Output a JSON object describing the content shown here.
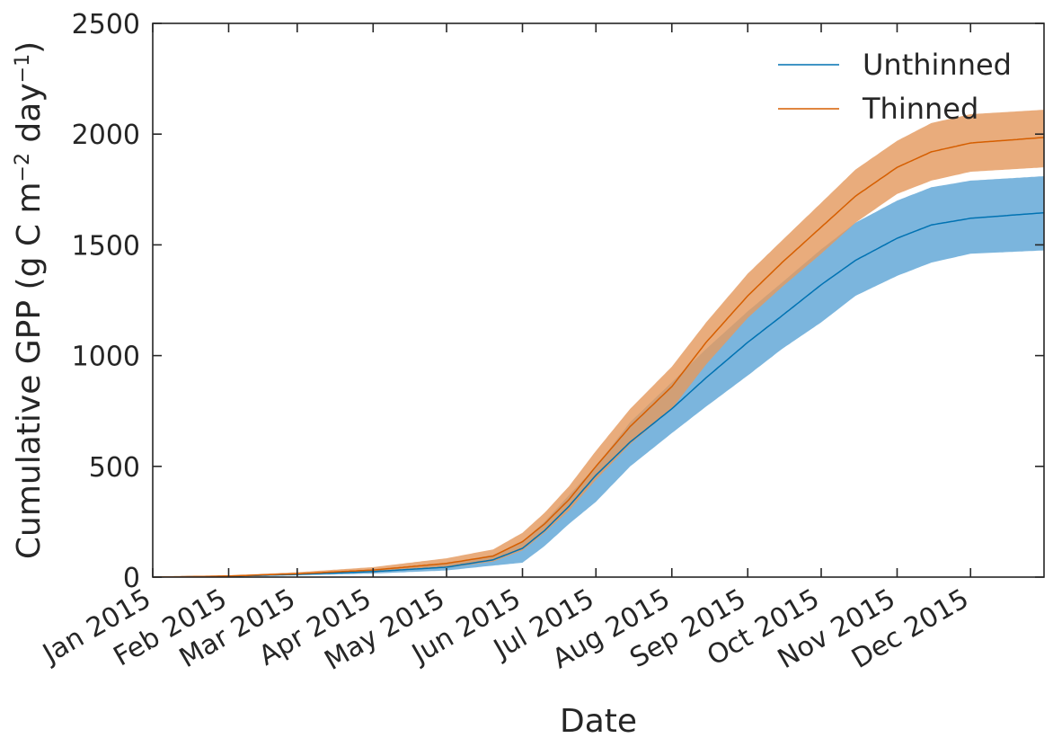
{
  "chart_data": {
    "type": "area",
    "xlabel": "Date",
    "ylabel_parts": [
      "Cumulative GPP (g C m",
      "−2",
      " day",
      "−1",
      ")"
    ],
    "xlim": [
      "2015-01-01",
      "2015-12-31"
    ],
    "ylim": [
      0,
      2500
    ],
    "y_ticks": [
      0,
      500,
      1000,
      1500,
      2000,
      2500
    ],
    "x_ticks": [
      {
        "date": "2015-01-01",
        "label": "Jan 2015"
      },
      {
        "date": "2015-02-01",
        "label": "Feb 2015"
      },
      {
        "date": "2015-03-01",
        "label": "Mar 2015"
      },
      {
        "date": "2015-04-01",
        "label": "Apr 2015"
      },
      {
        "date": "2015-05-01",
        "label": "May 2015"
      },
      {
        "date": "2015-06-01",
        "label": "Jun 2015"
      },
      {
        "date": "2015-07-01",
        "label": "Jul 2015"
      },
      {
        "date": "2015-08-01",
        "label": "Aug 2015"
      },
      {
        "date": "2015-09-01",
        "label": "Sep 2015"
      },
      {
        "date": "2015-10-01",
        "label": "Oct 2015"
      },
      {
        "date": "2015-11-01",
        "label": "Nov 2015"
      },
      {
        "date": "2015-12-01",
        "label": "Dec 2015"
      }
    ],
    "grid": false,
    "legend_position": "top-right",
    "series": [
      {
        "name": "Unthinned",
        "color": "#0072b2",
        "band_color": "#56a0d3",
        "points": [
          {
            "date": "2015-01-01",
            "mean": 0,
            "lower": 0,
            "upper": 0
          },
          {
            "date": "2015-02-01",
            "mean": 4,
            "lower": 3,
            "upper": 6
          },
          {
            "date": "2015-03-01",
            "mean": 12,
            "lower": 8,
            "upper": 16
          },
          {
            "date": "2015-04-01",
            "mean": 25,
            "lower": 16,
            "upper": 34
          },
          {
            "date": "2015-05-01",
            "mean": 45,
            "lower": 30,
            "upper": 62
          },
          {
            "date": "2015-05-20",
            "mean": 78,
            "lower": 52,
            "upper": 100
          },
          {
            "date": "2015-06-01",
            "mean": 130,
            "lower": 65,
            "upper": 160
          },
          {
            "date": "2015-06-10",
            "mean": 210,
            "lower": 140,
            "upper": 250
          },
          {
            "date": "2015-06-20",
            "mean": 320,
            "lower": 240,
            "upper": 370
          },
          {
            "date": "2015-07-01",
            "mean": 460,
            "lower": 340,
            "upper": 500
          },
          {
            "date": "2015-07-15",
            "mean": 610,
            "lower": 500,
            "upper": 700
          },
          {
            "date": "2015-08-01",
            "mean": 760,
            "lower": 650,
            "upper": 880
          },
          {
            "date": "2015-08-15",
            "mean": 900,
            "lower": 770,
            "upper": 1030
          },
          {
            "date": "2015-09-01",
            "mean": 1060,
            "lower": 910,
            "upper": 1200
          },
          {
            "date": "2015-09-15",
            "mean": 1180,
            "lower": 1030,
            "upper": 1330
          },
          {
            "date": "2015-10-01",
            "mean": 1320,
            "lower": 1150,
            "upper": 1480
          },
          {
            "date": "2015-10-15",
            "mean": 1430,
            "lower": 1270,
            "upper": 1600
          },
          {
            "date": "2015-11-01",
            "mean": 1530,
            "lower": 1360,
            "upper": 1700
          },
          {
            "date": "2015-11-15",
            "mean": 1590,
            "lower": 1420,
            "upper": 1760
          },
          {
            "date": "2015-12-01",
            "mean": 1620,
            "lower": 1460,
            "upper": 1790
          },
          {
            "date": "2015-12-31",
            "mean": 1645,
            "lower": 1475,
            "upper": 1810
          }
        ]
      },
      {
        "name": "Thinned",
        "color": "#d55e00",
        "band_color": "#e49a5f",
        "points": [
          {
            "date": "2015-01-01",
            "mean": 0,
            "lower": 0,
            "upper": 0
          },
          {
            "date": "2015-02-01",
            "mean": 5,
            "lower": 3,
            "upper": 8
          },
          {
            "date": "2015-03-01",
            "mean": 15,
            "lower": 10,
            "upper": 22
          },
          {
            "date": "2015-04-01",
            "mean": 32,
            "lower": 22,
            "upper": 45
          },
          {
            "date": "2015-05-01",
            "mean": 62,
            "lower": 42,
            "upper": 85
          },
          {
            "date": "2015-05-20",
            "mean": 95,
            "lower": 70,
            "upper": 125
          },
          {
            "date": "2015-06-01",
            "mean": 160,
            "lower": 120,
            "upper": 200
          },
          {
            "date": "2015-06-10",
            "mean": 240,
            "lower": 200,
            "upper": 290
          },
          {
            "date": "2015-06-20",
            "mean": 350,
            "lower": 300,
            "upper": 410
          },
          {
            "date": "2015-07-01",
            "mean": 500,
            "lower": 440,
            "upper": 570
          },
          {
            "date": "2015-07-15",
            "mean": 680,
            "lower": 600,
            "upper": 760
          },
          {
            "date": "2015-08-01",
            "mean": 860,
            "lower": 760,
            "upper": 950
          },
          {
            "date": "2015-08-15",
            "mean": 1060,
            "lower": 960,
            "upper": 1150
          },
          {
            "date": "2015-09-01",
            "mean": 1270,
            "lower": 1170,
            "upper": 1370
          },
          {
            "date": "2015-09-15",
            "mean": 1420,
            "lower": 1310,
            "upper": 1520
          },
          {
            "date": "2015-10-01",
            "mean": 1580,
            "lower": 1460,
            "upper": 1690
          },
          {
            "date": "2015-10-15",
            "mean": 1720,
            "lower": 1600,
            "upper": 1840
          },
          {
            "date": "2015-11-01",
            "mean": 1850,
            "lower": 1730,
            "upper": 1970
          },
          {
            "date": "2015-11-15",
            "mean": 1920,
            "lower": 1790,
            "upper": 2050
          },
          {
            "date": "2015-12-01",
            "mean": 1960,
            "lower": 1830,
            "upper": 2090
          },
          {
            "date": "2015-12-31",
            "mean": 1985,
            "lower": 1850,
            "upper": 2110
          }
        ]
      }
    ]
  }
}
